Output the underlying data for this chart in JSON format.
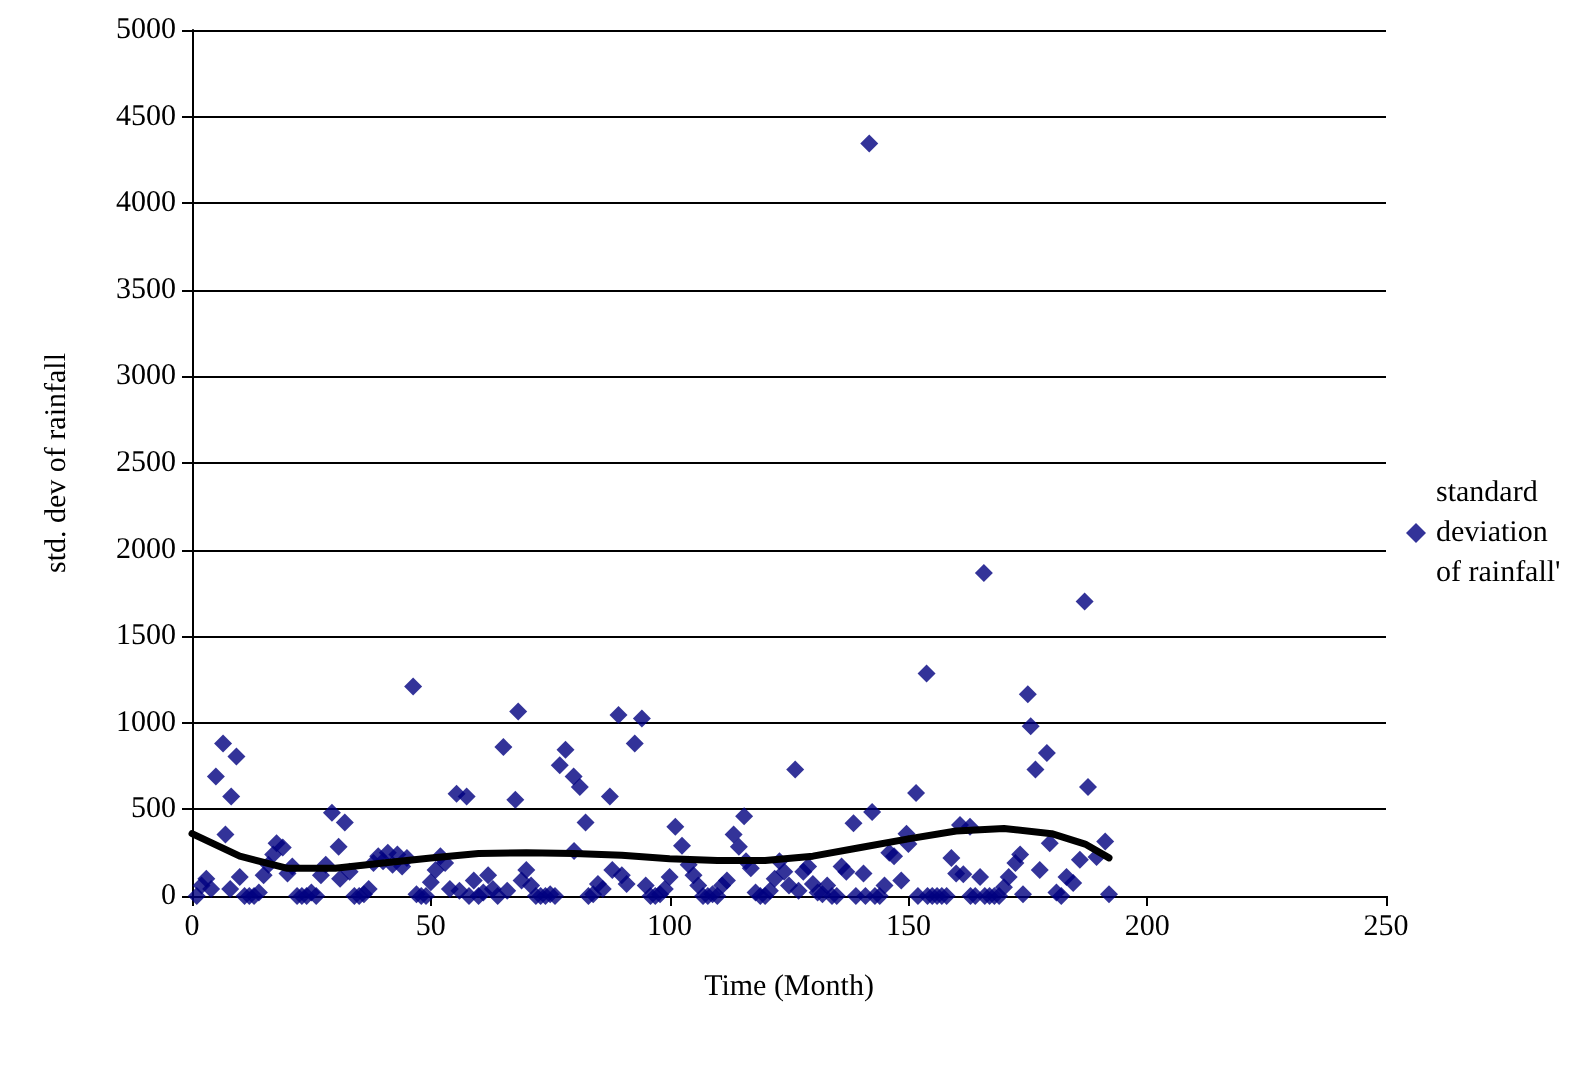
{
  "chart_data": {
    "type": "scatter",
    "xlabel": "Time (Month)",
    "ylabel": "std. dev of rainfall",
    "xlim": [
      0,
      250
    ],
    "xticks": [
      0,
      50,
      100,
      150,
      200,
      250
    ],
    "ylim": [
      0,
      5000
    ],
    "yticks": [
      0,
      500,
      1000,
      1500,
      2000,
      2500,
      3000,
      3500,
      4000,
      4500,
      5000
    ],
    "grid": "y",
    "legend": "right",
    "marker": "diamond",
    "series": [
      {
        "name": "standard deviation of rainfall'",
        "color": "#000080",
        "x": [
          1,
          2,
          3,
          4,
          5,
          6.5,
          7,
          8,
          8.2,
          9.3,
          10,
          11,
          12,
          13,
          14,
          15,
          16,
          17,
          17.7,
          19,
          20,
          21,
          22,
          23,
          24,
          25,
          26,
          27,
          28,
          29.3,
          30.7,
          31,
          32,
          33,
          34,
          35,
          36,
          37,
          38,
          39,
          40,
          41,
          42,
          43,
          44,
          45,
          46.3,
          47,
          48,
          49,
          50,
          51,
          52,
          53,
          54,
          55.4,
          56,
          57.5,
          58,
          59,
          60,
          61,
          62,
          63,
          64,
          65.2,
          66,
          67.7,
          68.3,
          69,
          70,
          71,
          72,
          73,
          74,
          75,
          76,
          77,
          78.2,
          79.9,
          80,
          81.2,
          82.4,
          83,
          84,
          85,
          86,
          87.5,
          88,
          89.3,
          90,
          91,
          92.7,
          94.2,
          95,
          96,
          97,
          98,
          99,
          100,
          101.2,
          102.6,
          104,
          105,
          106,
          107,
          108,
          109,
          110,
          111,
          112,
          113.4,
          114.5,
          115.6,
          116,
          117,
          118,
          119,
          120,
          121,
          122,
          123,
          124,
          125,
          126.3,
          127,
          128,
          129,
          130,
          131,
          132,
          133,
          134,
          135,
          136,
          137,
          138.5,
          139,
          140.6,
          141,
          141.8,
          142.4,
          143,
          144,
          145,
          146,
          147,
          148.5,
          149.6,
          150,
          151.6,
          152,
          153.8,
          154,
          155,
          156,
          157,
          158,
          159,
          160,
          160.8,
          161.5,
          162.9,
          163,
          164,
          165,
          165.8,
          166,
          167,
          168,
          169,
          170,
          171,
          172.4,
          173.4,
          174,
          175,
          175.6,
          176.6,
          177.5,
          179,
          179.6,
          181,
          182,
          183.1,
          184.5,
          185.9,
          186.9,
          187.6,
          189.4,
          191.2,
          192
        ],
        "values": [
          0,
          60,
          100,
          40,
          690,
          880,
          355,
          40,
          575,
          805,
          110,
          0,
          0,
          0,
          20,
          120,
          180,
          240,
          305,
          280,
          130,
          170,
          0,
          0,
          0,
          20,
          0,
          120,
          180,
          480,
          285,
          100,
          425,
          140,
          0,
          0,
          10,
          40,
          190,
          230,
          200,
          250,
          180,
          240,
          170,
          220,
          1210,
          10,
          0,
          0,
          80,
          150,
          230,
          190,
          40,
          590,
          30,
          575,
          0,
          90,
          0,
          20,
          120,
          40,
          0,
          860,
          30,
          555,
          1065,
          90,
          150,
          60,
          0,
          0,
          0,
          10,
          0,
          755,
          845,
          690,
          260,
          630,
          425,
          0,
          10,
          70,
          40,
          575,
          150,
          1045,
          120,
          70,
          880,
          1025,
          60,
          0,
          0,
          10,
          40,
          110,
          400,
          290,
          180,
          120,
          60,
          0,
          0,
          10,
          0,
          60,
          90,
          355,
          285,
          460,
          200,
          160,
          20,
          0,
          0,
          30,
          100,
          200,
          140,
          60,
          730,
          30,
          140,
          170,
          70,
          20,
          10,
          60,
          0,
          0,
          170,
          140,
          420,
          0,
          130,
          0,
          4345,
          485,
          0,
          0,
          60,
          250,
          230,
          90,
          360,
          300,
          595,
          0,
          1285,
          0,
          0,
          0,
          0,
          0,
          220,
          130,
          410,
          125,
          400,
          0,
          0,
          110,
          1865,
          0,
          0,
          0,
          0,
          50,
          110,
          190,
          240,
          10,
          1165,
          980,
          730,
          150,
          825,
          305,
          20,
          0,
          110,
          75,
          210,
          1700,
          630,
          225,
          315,
          10
        ]
      },
      {
        "type": "line",
        "color": "#000000",
        "marker": "none",
        "line_style": "solid",
        "x": [
          0,
          10,
          20,
          30,
          40,
          50,
          60,
          70,
          80,
          90,
          100,
          110,
          120,
          130,
          140,
          150,
          160,
          170,
          180,
          187,
          192
        ],
        "values": [
          360,
          230,
          160,
          160,
          190,
          220,
          245,
          250,
          245,
          235,
          215,
          205,
          205,
          230,
          280,
          330,
          375,
          390,
          360,
          300,
          220
        ]
      }
    ]
  }
}
